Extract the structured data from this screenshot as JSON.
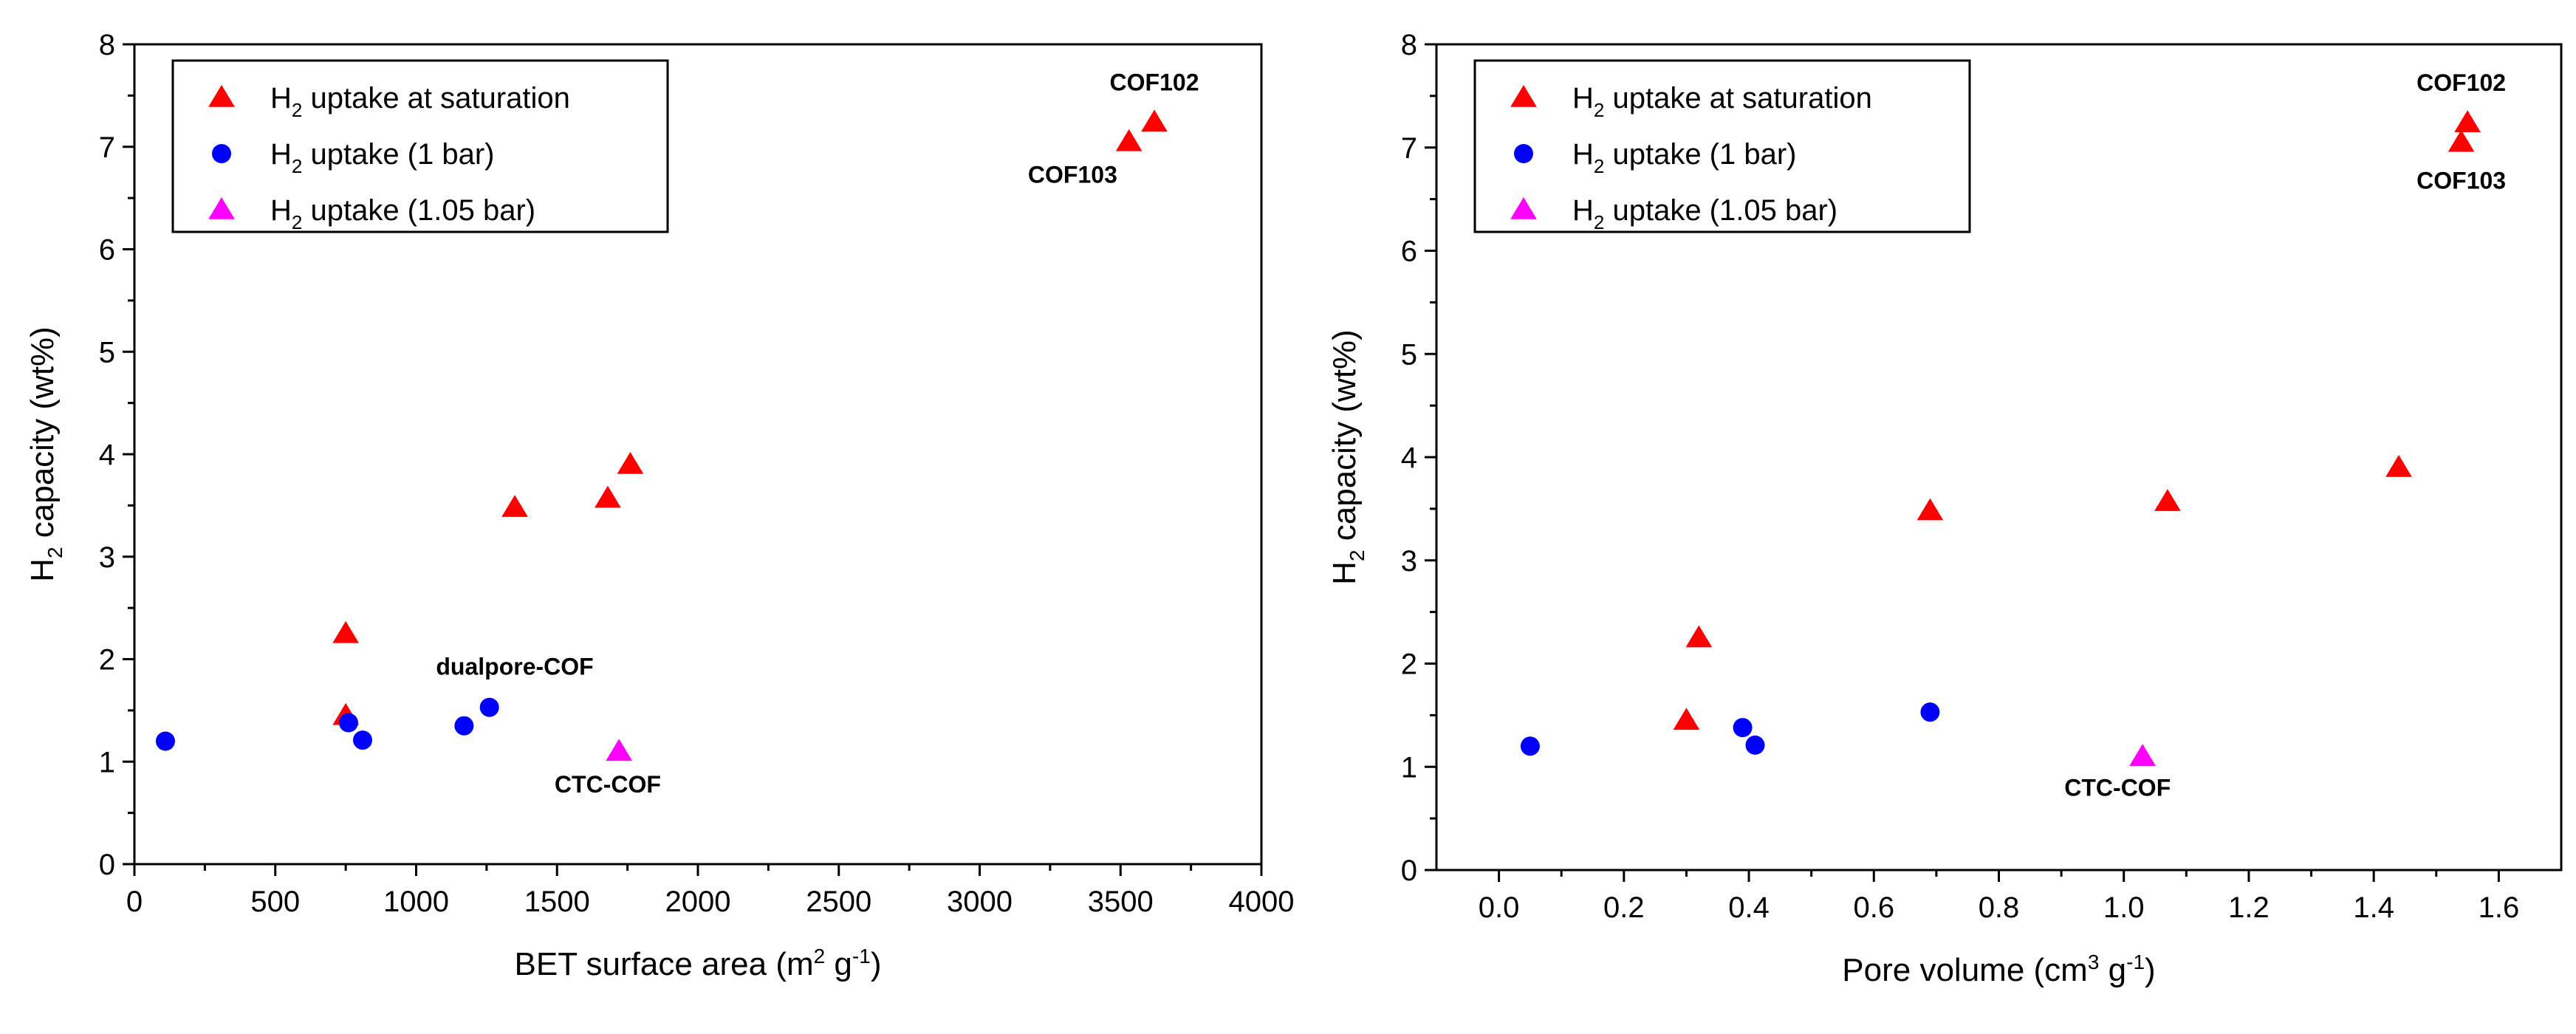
{
  "colors": {
    "saturation": "#ff0000",
    "one_bar": "#0000ff",
    "onefive_bar": "#ff00ff",
    "axis": "#000000"
  },
  "legend": {
    "h": "H",
    "sub": "2",
    "items": [
      {
        "key": "saturation",
        "marker": "triangle",
        "text": " uptake at saturation"
      },
      {
        "key": "one_bar",
        "marker": "circle",
        "text": " uptake (1 bar)"
      },
      {
        "key": "onefive_bar",
        "marker": "triangle",
        "text": " uptake (1.05 bar)"
      }
    ]
  },
  "chart_data": [
    {
      "type": "scatter",
      "id": "left",
      "xlabel": {
        "pre": "BET surface area (m",
        "sup1": "2",
        "mid": " g",
        "sup2": "-1",
        "post": ")"
      },
      "ylabel": {
        "h": "H",
        "sub": "2",
        "rest": " capacity (wt%)"
      },
      "xlim": [
        0,
        4000
      ],
      "ylim": [
        0,
        8
      ],
      "xticks": [
        0,
        500,
        1000,
        1500,
        2000,
        2500,
        3000,
        3500,
        4000
      ],
      "xtick_labels": [
        "0",
        "500",
        "1000",
        "1500",
        "2000",
        "2500",
        "3000",
        "3500",
        "4000"
      ],
      "yticks": [
        0,
        1,
        2,
        3,
        4,
        5,
        6,
        7,
        8
      ],
      "ytick_labels": [
        "0",
        "1",
        "2",
        "3",
        "4",
        "5",
        "6",
        "7",
        "8"
      ],
      "series": [
        {
          "name": "H2 uptake at saturation",
          "key": "saturation",
          "marker": "triangle",
          "points": [
            [
              750,
              2.25
            ],
            [
              750,
              1.45
            ],
            [
              1350,
              3.48
            ],
            [
              1680,
              3.57
            ],
            [
              1760,
              3.9
            ],
            [
              3530,
              7.05
            ],
            [
              3620,
              7.24
            ]
          ]
        },
        {
          "name": "H2 uptake (1 bar)",
          "key": "one_bar",
          "marker": "circle",
          "points": [
            [
              110,
              1.2
            ],
            [
              760,
              1.38
            ],
            [
              810,
              1.21
            ],
            [
              1170,
              1.35
            ],
            [
              1260,
              1.53
            ]
          ]
        },
        {
          "name": "H2 uptake (1.05 bar)",
          "key": "onefive_bar",
          "marker": "triangle",
          "points": [
            [
              1720,
              1.1
            ]
          ]
        }
      ],
      "annotations": [
        {
          "text": "COF102",
          "x": 3620,
          "y": 7.55
        },
        {
          "text": "COF103",
          "x": 3330,
          "y": 6.65
        },
        {
          "text": "dualpore-COF",
          "x": 1350,
          "y": 1.85
        },
        {
          "text": "CTC-COF",
          "x": 1680,
          "y": 0.7
        }
      ]
    },
    {
      "type": "scatter",
      "id": "right",
      "xlabel": {
        "pre": "Pore volume (cm",
        "sup1": "3",
        "mid": " g",
        "sup2": "-1",
        "post": ")"
      },
      "ylabel": {
        "h": "H",
        "sub": "2",
        "rest": " capacity (wt%)"
      },
      "xlim": [
        -0.1,
        1.7
      ],
      "ylim": [
        0,
        8
      ],
      "xticks": [
        0.0,
        0.2,
        0.4,
        0.6,
        0.8,
        1.0,
        1.2,
        1.4,
        1.6
      ],
      "xtick_labels": [
        "0.0",
        "0.2",
        "0.4",
        "0.6",
        "0.8",
        "1.0",
        "1.2",
        "1.4",
        "1.6"
      ],
      "yticks": [
        0,
        1,
        2,
        3,
        4,
        5,
        6,
        7,
        8
      ],
      "ytick_labels": [
        "0",
        "1",
        "2",
        "3",
        "4",
        "5",
        "6",
        "7",
        "8"
      ],
      "series": [
        {
          "name": "H2 uptake at saturation",
          "key": "saturation",
          "marker": "triangle",
          "points": [
            [
              0.3,
              1.45
            ],
            [
              0.32,
              2.25
            ],
            [
              0.69,
              3.48
            ],
            [
              1.07,
              3.57
            ],
            [
              1.44,
              3.9
            ],
            [
              1.54,
              7.05
            ],
            [
              1.55,
              7.24
            ]
          ]
        },
        {
          "name": "H2 uptake (1 bar)",
          "key": "one_bar",
          "marker": "circle",
          "points": [
            [
              0.05,
              1.2
            ],
            [
              0.39,
              1.38
            ],
            [
              0.41,
              1.21
            ],
            [
              0.69,
              1.53
            ]
          ]
        },
        {
          "name": "H2 uptake (1.05 bar)",
          "key": "onefive_bar",
          "marker": "triangle",
          "points": [
            [
              1.03,
              1.1
            ]
          ]
        }
      ],
      "annotations": [
        {
          "text": "COF102",
          "x": 1.54,
          "y": 7.55
        },
        {
          "text": "COF103",
          "x": 1.54,
          "y": 6.6
        },
        {
          "text": "CTC-COF",
          "x": 0.99,
          "y": 0.72
        }
      ]
    }
  ]
}
